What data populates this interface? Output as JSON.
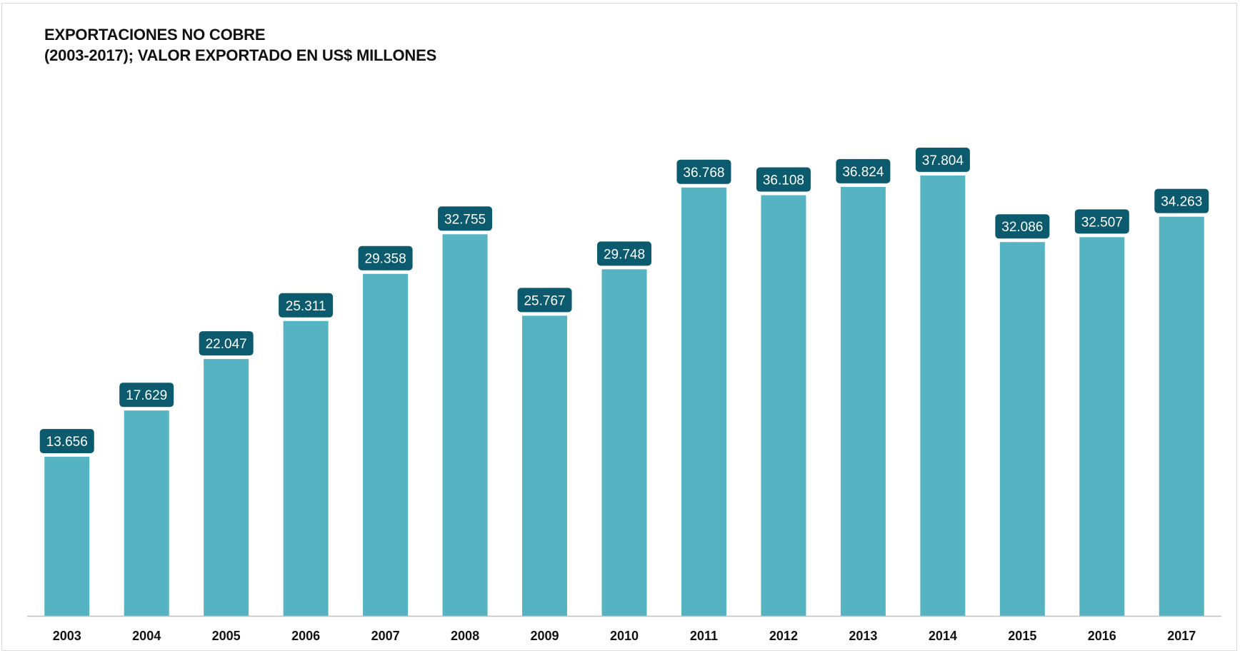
{
  "chart_data": {
    "type": "bar",
    "title": "EXPORTACIONES NO COBRE",
    "subtitle": "(2003-2017); VALOR EXPORTADO EN US$ MILLONES",
    "categories": [
      "2003",
      "2004",
      "2005",
      "2006",
      "2007",
      "2008",
      "2009",
      "2010",
      "2011",
      "2012",
      "2013",
      "2014",
      "2015",
      "2016",
      "2017"
    ],
    "values": [
      13656,
      17629,
      22047,
      25311,
      29358,
      32755,
      25767,
      29748,
      36768,
      36108,
      36824,
      37804,
      32086,
      32507,
      34263
    ],
    "data_labels": [
      "13.656",
      "17.629",
      "22.047",
      "25.311",
      "29.358",
      "32.755",
      "25.767",
      "29.748",
      "36.768",
      "36.108",
      "36.824",
      "37.804",
      "32.086",
      "32.507",
      "34.263"
    ],
    "xlabel": "",
    "ylabel": "",
    "ylim": [
      0,
      40000
    ],
    "grid": false,
    "legend": "none",
    "colors": {
      "bar": "#56b4c2",
      "label_box": "#0b5a6e",
      "label_text": "#ffffff"
    }
  }
}
